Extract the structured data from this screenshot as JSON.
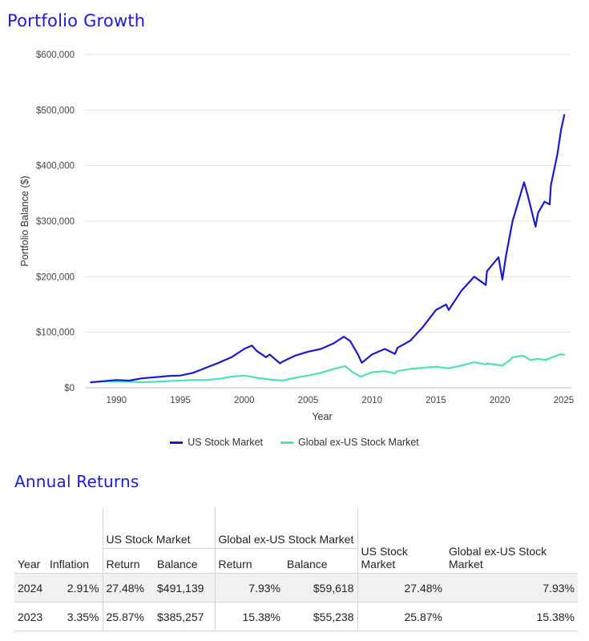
{
  "portfolio_title": "Portfolio Growth",
  "returns_title": "Annual Returns",
  "colors": {
    "us": "#1a1acc",
    "global": "#4fe0b0",
    "heading": "#1a1adb"
  },
  "chart_data": {
    "type": "line",
    "title": "Portfolio Growth",
    "xlabel": "Year",
    "ylabel": "Portfolio Balance ($)",
    "xlim": [
      1987.6,
      2025.6
    ],
    "ylim": [
      0,
      600000
    ],
    "y_ticks": [
      0,
      100000,
      200000,
      300000,
      400000,
      500000,
      600000
    ],
    "y_tick_labels": [
      "$0",
      "$100,000",
      "$200,000",
      "$300,000",
      "$400,000",
      "$500,000",
      "$600,000"
    ],
    "x_ticks": [
      1990,
      1995,
      2000,
      2005,
      2010,
      2015,
      2020,
      2025
    ],
    "x_tick_labels": [
      "1990",
      "1995",
      "2000",
      "2005",
      "2010",
      "2015",
      "2020",
      "2025"
    ],
    "grid": "horizontal",
    "legend_position": "bottom",
    "series": [
      {
        "name": "US Stock Market",
        "color": "#1a1acc",
        "x": [
          1988,
          1989,
          1990,
          1991,
          1992,
          1993,
          1994,
          1995,
          1996,
          1997,
          1998,
          1999,
          2000,
          2000.6,
          2001,
          2001.7,
          2002,
          2002.8,
          2003,
          2004,
          2005,
          2006,
          2007,
          2007.8,
          2008.3,
          2008.9,
          2009.2,
          2010,
          2011,
          2011.8,
          2012,
          2013,
          2014,
          2015,
          2015.8,
          2016,
          2017,
          2018,
          2018.9,
          2019,
          2019.9,
          2020.2,
          2020.5,
          2021,
          2021.9,
          2022.2,
          2022.8,
          2023,
          2023.5,
          2023.9,
          2024,
          2024.5,
          2024.8,
          2025.05
        ],
        "y": [
          10000,
          12000,
          14000,
          13000,
          17000,
          19000,
          21000,
          22000,
          27000,
          36000,
          45000,
          55000,
          70000,
          76000,
          66000,
          55000,
          60000,
          44000,
          47000,
          58000,
          65000,
          70000,
          80000,
          92000,
          84000,
          60000,
          45000,
          60000,
          70000,
          61000,
          72000,
          85000,
          110000,
          140000,
          150000,
          140000,
          175000,
          200000,
          185000,
          210000,
          235000,
          195000,
          240000,
          300000,
          370000,
          345000,
          290000,
          315000,
          335000,
          330000,
          365000,
          420000,
          465000,
          491139
        ]
      },
      {
        "name": "Global ex-US Stock Market",
        "color": "#4fe0b0",
        "x": [
          1988,
          1989,
          1990,
          1991,
          1992,
          1993,
          1994,
          1995,
          1996,
          1997,
          1998,
          1999,
          2000,
          2001,
          2002,
          2003,
          2004,
          2005,
          2006,
          2007,
          2007.9,
          2008.5,
          2009.1,
          2010,
          2011,
          2011.8,
          2012,
          2013,
          2014,
          2015,
          2016,
          2017,
          2018,
          2018.9,
          2019,
          2020.2,
          2020.8,
          2021,
          2021.8,
          2022.4,
          2023,
          2023.6,
          2024,
          2024.7,
          2025.05
        ],
        "y": [
          10000,
          11500,
          11000,
          11000,
          10000,
          11000,
          12000,
          13000,
          14000,
          14000,
          16000,
          20000,
          22000,
          18000,
          15000,
          13000,
          18000,
          22000,
          27000,
          34000,
          39000,
          28000,
          20000,
          28000,
          30000,
          26000,
          30000,
          34000,
          36000,
          38000,
          35000,
          40000,
          46000,
          42000,
          44000,
          40000,
          50000,
          55000,
          58000,
          50000,
          52000,
          50000,
          54000,
          60000,
          59618
        ]
      }
    ]
  },
  "legend": [
    {
      "label": "US Stock Market",
      "color": "#1a1acc"
    },
    {
      "label": "Global ex-US Stock Market",
      "color": "#4fe0b0"
    }
  ],
  "table": {
    "group_us": "US Stock Market",
    "group_global": "Global ex-US Stock Market",
    "col_us_market": "US Stock Market",
    "col_global_market": "Global ex-US Stock Market",
    "col_year": "Year",
    "col_inflation": "Inflation",
    "col_return": "Return",
    "col_balance": "Balance",
    "rows": [
      {
        "year": "2024",
        "inflation": "2.91%",
        "us_return": "27.48%",
        "us_balance": "$491,139",
        "global_return": "7.93%",
        "global_balance": "$59,618",
        "us_market": "27.48%",
        "global_market": "7.93%"
      },
      {
        "year": "2023",
        "inflation": "3.35%",
        "us_return": "25.87%",
        "us_balance": "$385,257",
        "global_return": "15.38%",
        "global_balance": "$55,238",
        "us_market": "25.87%",
        "global_market": "15.38%"
      }
    ]
  }
}
